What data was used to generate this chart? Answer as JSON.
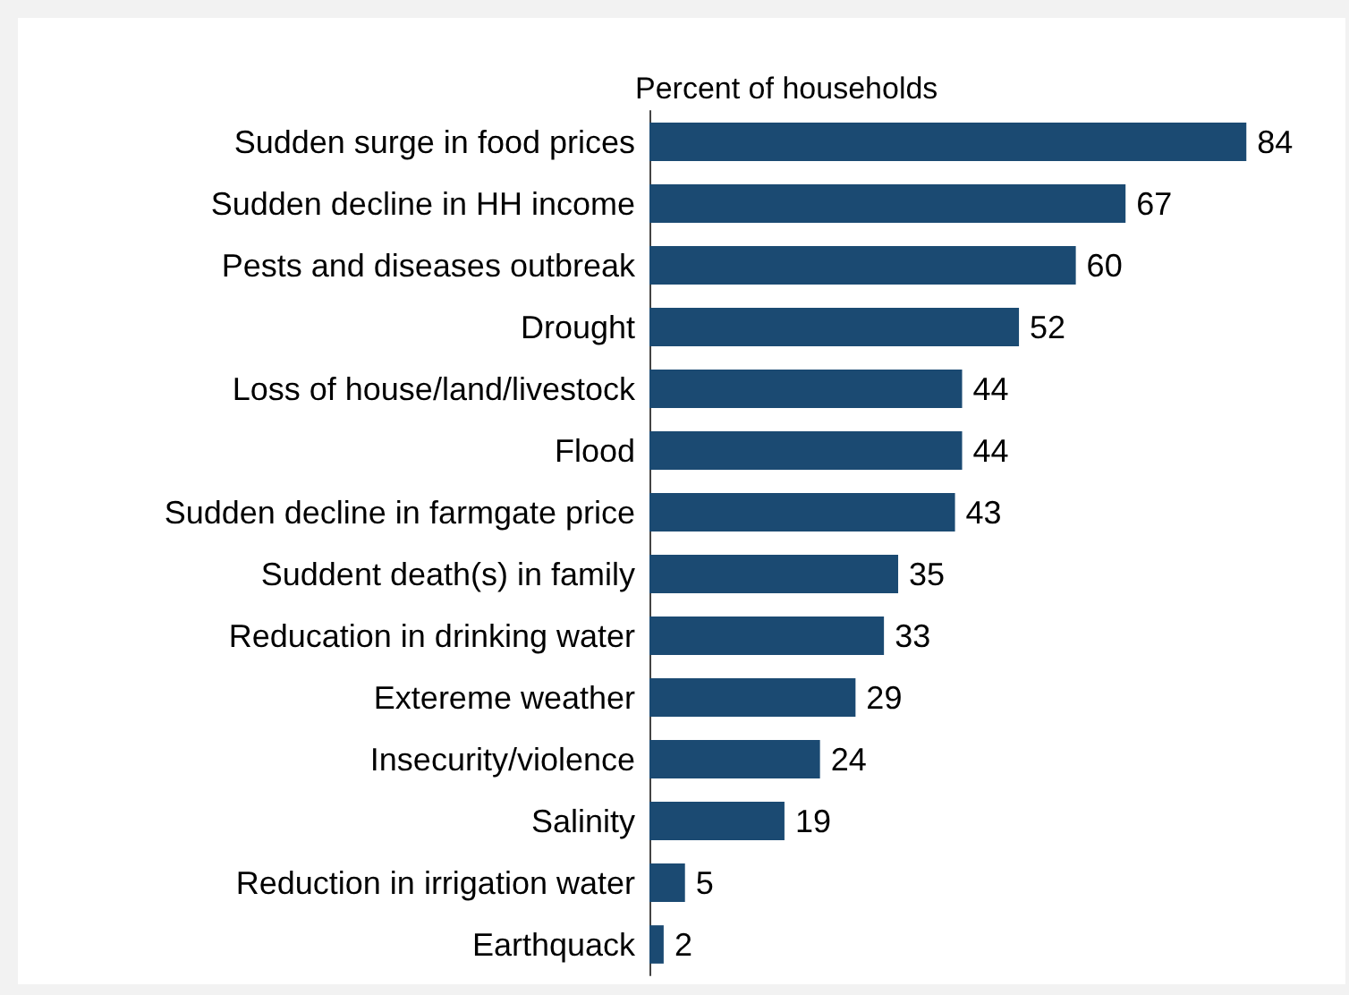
{
  "chart_data": {
    "type": "bar",
    "orientation": "horizontal",
    "title": "Percent of households",
    "categories": [
      "Sudden surge in food prices",
      "Sudden decline in HH income",
      "Pests and diseases outbreak",
      "Drought",
      "Loss of house/land/livestock",
      "Flood",
      "Sudden decline in farmgate price",
      "Suddent death(s) in family",
      "Reducation in drinking water",
      "Extereme weather",
      "Insecurity/violence",
      "Salinity",
      "Reduction in irrigation water",
      "Earthquack"
    ],
    "values": [
      84,
      67,
      60,
      52,
      44,
      44,
      43,
      35,
      33,
      29,
      24,
      19,
      5,
      2
    ],
    "color": "#1b4a72",
    "data_labels": true,
    "tick_labels": "y"
  }
}
